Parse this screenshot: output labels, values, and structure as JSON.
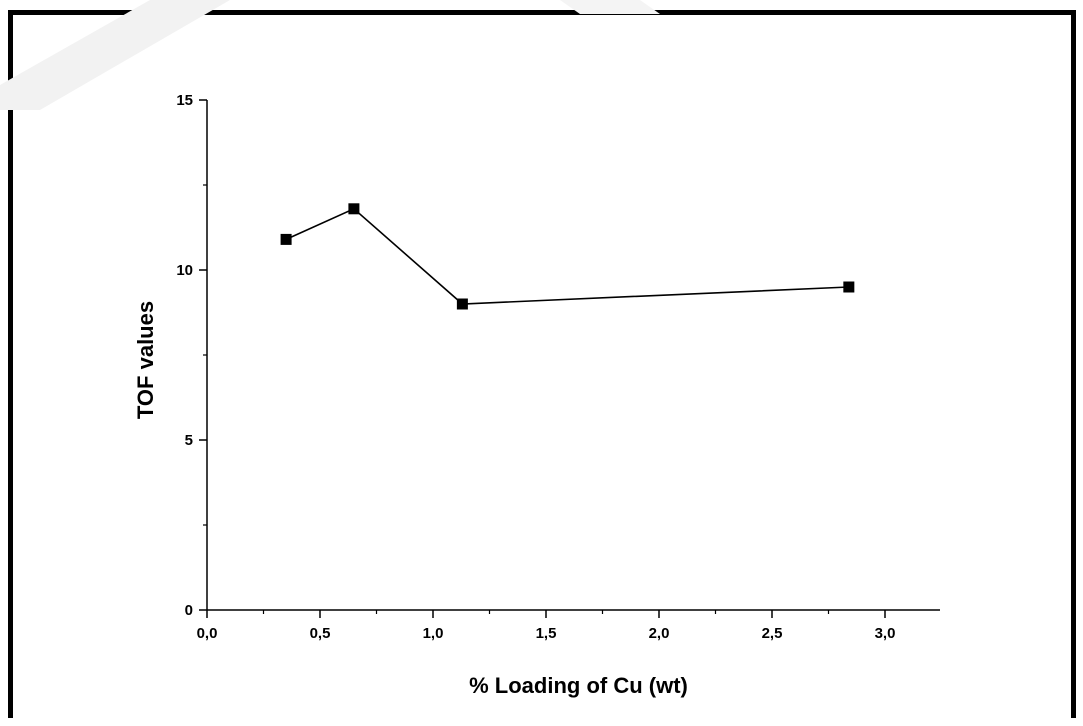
{
  "chart_data": {
    "type": "line",
    "title": "",
    "xlabel": "% Loading of Cu (wt)",
    "ylabel": "TOF values",
    "xlim": [
      0,
      3.25
    ],
    "ylim": [
      0,
      15
    ],
    "x_ticks": [
      "0,0",
      "0,5",
      "1,0",
      "1,5",
      "2,0",
      "2,5",
      "3,0"
    ],
    "y_ticks": [
      "0",
      "5",
      "10",
      "15"
    ],
    "grid": false,
    "legend": "none",
    "marker": "square",
    "line_color": "#000000",
    "series": [
      {
        "x": [
          0.35,
          0.65,
          1.13,
          2.84
        ],
        "y": [
          10.9,
          11.8,
          9.0,
          9.5
        ]
      }
    ]
  }
}
